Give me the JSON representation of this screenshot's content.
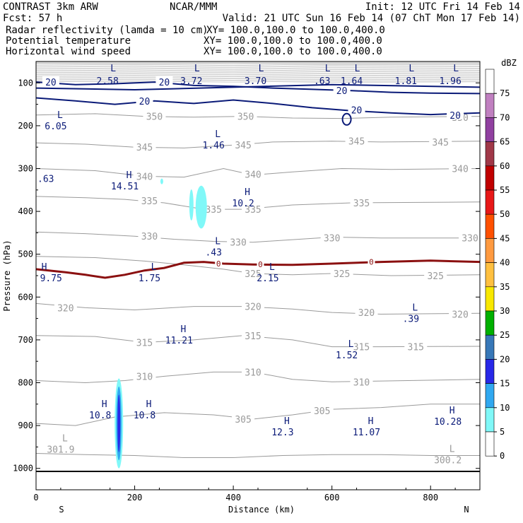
{
  "header": {
    "title": "CONTRAST  3km ARW",
    "center": "NCAR/MMM",
    "init": "Init: 12 UTC Fri 14 Feb 14",
    "fcst": "Fcst:    57 h",
    "valid": "Valid: 21 UTC Sun 16 Feb 14 (07 ChT Mon 17 Feb 14)"
  },
  "fields": [
    {
      "name": "Radar reflectivity (lamda = 10 cm)",
      "xy": "XY= 100.0,100.0 to 100.0,400.0",
      "color": "#000000"
    },
    {
      "name": "Potential temperature",
      "xy": "XY= 100.0,100.0 to 100.0,400.0",
      "color": "#c8c8c8"
    },
    {
      "name": "Horizontal wind speed",
      "xy": "XY= 100.0,100.0 to 100.0,400.0",
      "color": "#000080"
    }
  ],
  "colors": {
    "theta": "#9a9a9a",
    "wind": "#0a1a78",
    "tropopause": "#8b1010",
    "frame": "#000000"
  },
  "chart_data": {
    "type": "contour-cross-section",
    "xlabel": "Distance (km)",
    "ylabel": "Pressure (hPa)",
    "xlim": [
      0,
      900
    ],
    "ylim": [
      1050,
      50
    ],
    "x_ticks": [
      0,
      200,
      400,
      600,
      800
    ],
    "y_ticks": [
      100,
      200,
      300,
      400,
      500,
      600,
      700,
      800,
      900,
      1000
    ],
    "end_labels": {
      "left": "S",
      "right": "N"
    },
    "colorbar": {
      "title": "dBZ",
      "levels": [
        75,
        70,
        65,
        60,
        55,
        50,
        45,
        40,
        35,
        30,
        25,
        20,
        15,
        10,
        5,
        0
      ],
      "colors": [
        "#ffffff",
        "#c080c0",
        "#9040a0",
        "#a03848",
        "#c00000",
        "#e81818",
        "#ff5000",
        "#ff9a40",
        "#ffc040",
        "#f8e800",
        "#00b000",
        "#3878b8",
        "#2828e8",
        "#30a8f0",
        "#80f8f8",
        "#ffffff"
      ]
    },
    "theta_isentropes": [
      {
        "label": "350",
        "points": [
          [
            0,
            175
          ],
          [
            120,
            172
          ],
          [
            220,
            178
          ],
          [
            320,
            180
          ],
          [
            420,
            178
          ],
          [
            520,
            182
          ],
          [
            620,
            183
          ],
          [
            720,
            180
          ],
          [
            900,
            178
          ]
        ],
        "label_at": [
          [
            240,
            178
          ],
          [
            425,
            178
          ],
          [
            860,
            180
          ]
        ]
      },
      {
        "label": "345",
        "points": [
          [
            0,
            240
          ],
          [
            100,
            243
          ],
          [
            200,
            250
          ],
          [
            300,
            252
          ],
          [
            400,
            245
          ],
          [
            480,
            238
          ],
          [
            600,
            236
          ],
          [
            700,
            238
          ],
          [
            900,
            236
          ]
        ],
        "label_at": [
          [
            220,
            250
          ],
          [
            420,
            245
          ],
          [
            650,
            236
          ],
          [
            820,
            238
          ]
        ]
      },
      {
        "label": "340",
        "points": [
          [
            0,
            300
          ],
          [
            120,
            305
          ],
          [
            220,
            318
          ],
          [
            300,
            320
          ],
          [
            380,
            300
          ],
          [
            440,
            315
          ],
          [
            520,
            308
          ],
          [
            620,
            300
          ],
          [
            720,
            302
          ],
          [
            900,
            300
          ]
        ],
        "label_at": [
          [
            220,
            318
          ],
          [
            440,
            313
          ],
          [
            860,
            300
          ]
        ]
      },
      {
        "label": "335",
        "points": [
          [
            0,
            365
          ],
          [
            100,
            368
          ],
          [
            180,
            372
          ],
          [
            260,
            380
          ],
          [
            340,
            395
          ],
          [
            420,
            395
          ],
          [
            520,
            385
          ],
          [
            640,
            380
          ],
          [
            900,
            378
          ]
        ],
        "label_at": [
          [
            230,
            375
          ],
          [
            360,
            395
          ],
          [
            440,
            395
          ],
          [
            660,
            380
          ]
        ]
      },
      {
        "label": "330",
        "points": [
          [
            0,
            448
          ],
          [
            100,
            452
          ],
          [
            200,
            458
          ],
          [
            280,
            465
          ],
          [
            360,
            470
          ],
          [
            440,
            472
          ],
          [
            520,
            466
          ],
          [
            600,
            460
          ],
          [
            700,
            462
          ],
          [
            900,
            462
          ]
        ],
        "label_at": [
          [
            230,
            458
          ],
          [
            410,
            472
          ],
          [
            600,
            462
          ],
          [
            880,
            462
          ]
        ]
      },
      {
        "label": "325",
        "points": [
          [
            0,
            505
          ],
          [
            120,
            508
          ],
          [
            220,
            516
          ],
          [
            300,
            525
          ],
          [
            380,
            535
          ],
          [
            440,
            545
          ],
          [
            520,
            548
          ],
          [
            600,
            545
          ],
          [
            720,
            550
          ],
          [
            900,
            548
          ]
        ],
        "label_at": [
          [
            440,
            545
          ],
          [
            620,
            545
          ],
          [
            810,
            550
          ]
        ]
      },
      {
        "label": "320",
        "points": [
          [
            0,
            615
          ],
          [
            100,
            625
          ],
          [
            200,
            630
          ],
          [
            320,
            622
          ],
          [
            420,
            622
          ],
          [
            520,
            628
          ],
          [
            600,
            636
          ],
          [
            700,
            640
          ],
          [
            900,
            638
          ]
        ],
        "label_at": [
          [
            60,
            625
          ],
          [
            440,
            622
          ],
          [
            670,
            636
          ],
          [
            860,
            640
          ]
        ]
      },
      {
        "label": "315",
        "points": [
          [
            0,
            690
          ],
          [
            120,
            692
          ],
          [
            220,
            706
          ],
          [
            320,
            700
          ],
          [
            420,
            690
          ],
          [
            520,
            700
          ],
          [
            600,
            716
          ],
          [
            700,
            716
          ],
          [
            900,
            715
          ]
        ],
        "label_at": [
          [
            220,
            706
          ],
          [
            440,
            690
          ],
          [
            660,
            716
          ],
          [
            770,
            716
          ]
        ]
      },
      {
        "label": "310",
        "points": [
          [
            0,
            795
          ],
          [
            100,
            800
          ],
          [
            180,
            795
          ],
          [
            260,
            785
          ],
          [
            360,
            775
          ],
          [
            440,
            775
          ],
          [
            520,
            792
          ],
          [
            600,
            798
          ],
          [
            700,
            796
          ],
          [
            900,
            792
          ]
        ],
        "label_at": [
          [
            220,
            785
          ],
          [
            440,
            775
          ],
          [
            660,
            798
          ]
        ]
      },
      {
        "label": "305",
        "points": [
          [
            0,
            895
          ],
          [
            80,
            900
          ],
          [
            160,
            880
          ],
          [
            260,
            870
          ],
          [
            360,
            875
          ],
          [
            440,
            885
          ],
          [
            520,
            875
          ],
          [
            600,
            862
          ],
          [
            700,
            858
          ],
          [
            800,
            850
          ],
          [
            900,
            850
          ]
        ],
        "label_at": [
          [
            420,
            885
          ],
          [
            580,
            865
          ]
        ]
      },
      {
        "label": "",
        "points": [
          [
            0,
            965
          ],
          [
            100,
            968
          ],
          [
            200,
            970
          ],
          [
            300,
            975
          ],
          [
            400,
            975
          ],
          [
            500,
            970
          ],
          [
            600,
            968
          ],
          [
            700,
            968
          ],
          [
            800,
            970
          ],
          [
            900,
            970
          ]
        ],
        "label_at": []
      }
    ],
    "wind_contours": [
      {
        "label": "20",
        "points": [
          [
            0,
            135
          ],
          [
            80,
            142
          ],
          [
            160,
            150
          ],
          [
            240,
            142
          ],
          [
            320,
            148
          ],
          [
            400,
            140
          ],
          [
            480,
            148
          ],
          [
            560,
            158
          ],
          [
            640,
            165
          ],
          [
            720,
            170
          ],
          [
            800,
            174
          ],
          [
            900,
            170
          ]
        ],
        "label_at": [
          [
            220,
            142
          ],
          [
            650,
            163
          ],
          [
            850,
            175
          ]
        ]
      },
      {
        "label": "20",
        "points": [
          [
            0,
            98
          ],
          [
            80,
            104
          ],
          [
            160,
            102
          ],
          [
            240,
            98
          ],
          [
            320,
            106
          ],
          [
            400,
            108
          ],
          [
            480,
            112
          ],
          [
            560,
            115
          ],
          [
            640,
            118
          ],
          [
            720,
            122
          ],
          [
            800,
            124
          ],
          [
            900,
            125
          ]
        ],
        "label_at": [
          [
            30,
            98
          ],
          [
            260,
            98
          ],
          [
            620,
            118
          ]
        ]
      }
    ],
    "tropopause_line": {
      "label": "0",
      "points": [
        [
          0,
          535
        ],
        [
          60,
          542
        ],
        [
          100,
          548
        ],
        [
          140,
          555
        ],
        [
          180,
          548
        ],
        [
          220,
          538
        ],
        [
          260,
          532
        ],
        [
          300,
          520
        ],
        [
          340,
          518
        ],
        [
          380,
          522
        ],
        [
          440,
          524
        ],
        [
          520,
          525
        ],
        [
          600,
          522
        ],
        [
          700,
          518
        ],
        [
          800,
          515
        ],
        [
          900,
          518
        ]
      ],
      "label_at": [
        [
          370,
          522
        ],
        [
          455,
          524
        ],
        [
          680,
          518
        ]
      ]
    },
    "extrema": [
      {
        "type": "L",
        "value": "6.05",
        "x": 40,
        "p": 205,
        "color": "#0a1a78"
      },
      {
        "type": "L",
        "value": "1.46",
        "x": 360,
        "p": 250,
        "color": "#0a1a78"
      },
      {
        "type": "",
        "value": ".63",
        "x": 0,
        "p": 328,
        "color": "#0a1a78"
      },
      {
        "type": "H",
        "value": "14.51",
        "x": 180,
        "p": 345,
        "color": "#0a1a78"
      },
      {
        "type": "H",
        "value": "10.2",
        "x": 420,
        "p": 385,
        "color": "#0a1a78"
      },
      {
        "type": "L",
        "value": ".43",
        "x": 360,
        "p": 500,
        "color": "#0a1a78"
      },
      {
        "type": "H",
        "value": "9.75",
        "x": 8,
        "p": 560,
        "color": "#0a1a78"
      },
      {
        "type": "L",
        "value": "1.75",
        "x": 230,
        "p": 560,
        "color": "#0a1a78"
      },
      {
        "type": "L",
        "value": "2.15",
        "x": 470,
        "p": 560,
        "color": "#0a1a78"
      },
      {
        "type": "L",
        "value": ".39",
        "x": 760,
        "p": 655,
        "color": "#0a1a78"
      },
      {
        "type": "H",
        "value": "11.21",
        "x": 290,
        "p": 705,
        "color": "#0a1a78"
      },
      {
        "type": "L",
        "value": "1.52",
        "x": 630,
        "p": 740,
        "color": "#0a1a78"
      },
      {
        "type": "H",
        "value": "10.8",
        "x": 130,
        "p": 880,
        "color": "#0a1a78"
      },
      {
        "type": "H",
        "value": "10.8",
        "x": 220,
        "p": 880,
        "color": "#0a1a78"
      },
      {
        "type": "H",
        "value": "12.3",
        "x": 500,
        "p": 920,
        "color": "#0a1a78"
      },
      {
        "type": "H",
        "value": "11.07",
        "x": 670,
        "p": 920,
        "color": "#0a1a78"
      },
      {
        "type": "H",
        "value": "10.28",
        "x": 835,
        "p": 895,
        "color": "#0a1a78"
      },
      {
        "type": "L",
        "value": "301.9",
        "x": 50,
        "p": 960,
        "color": "#9a9a9a"
      },
      {
        "type": "L",
        "value": "300.2",
        "x": 835,
        "p": 985,
        "color": "#9a9a9a"
      }
    ],
    "top_strip_values": [
      {
        "type": "L",
        "value": "2.58",
        "x": 145
      },
      {
        "type": "L",
        "value": "3.72",
        "x": 315
      },
      {
        "type": "L",
        "value": "3.70",
        "x": 445
      },
      {
        "type": "L",
        "value": ".63",
        "x": 580
      },
      {
        "type": "L",
        "value": "1.64",
        "x": 640
      },
      {
        "type": "L",
        "value": "1.81",
        "x": 750
      },
      {
        "type": "L",
        "value": "1.96",
        "x": 840
      }
    ],
    "reflectivity_cells": [
      {
        "x": 168,
        "p_top": 790,
        "p_bottom": 1000,
        "max_dbz": 20
      },
      {
        "x": 335,
        "p_top": 340,
        "p_bottom": 440,
        "max_dbz": 10
      }
    ]
  }
}
